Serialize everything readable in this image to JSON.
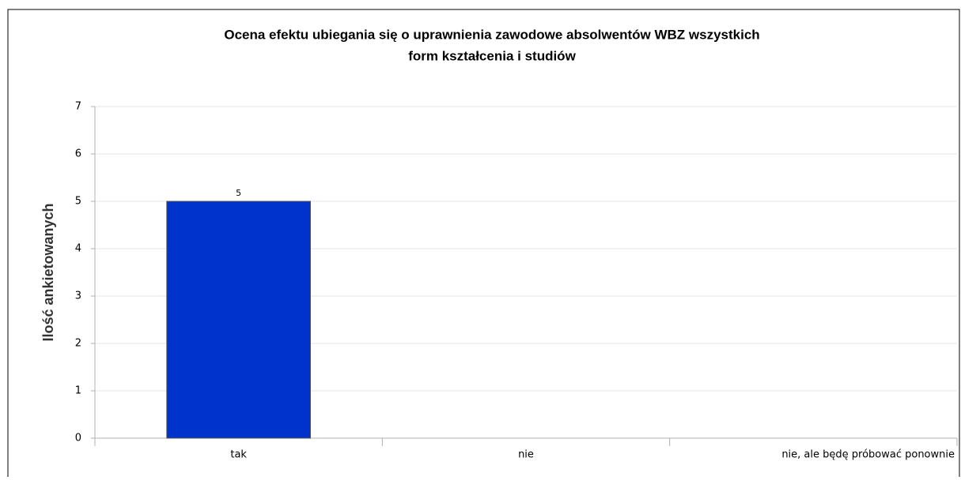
{
  "chart_data": {
    "type": "bar",
    "title": [
      "Ocena efektu ubiegania się o uprawnienia zawodowe absolwentów WBZ wszystkich",
      "form kształcenia i studiów"
    ],
    "ylabel": "Ilość ankietowanych",
    "categories": [
      "tak",
      "nie",
      "nie, ale będę próbować ponownie"
    ],
    "values": [
      5,
      0,
      0
    ],
    "color": "#0033cc",
    "ylim": [
      0,
      7
    ],
    "yticks": [
      0,
      1,
      2,
      3,
      4,
      5,
      6,
      7
    ],
    "grid": true
  }
}
